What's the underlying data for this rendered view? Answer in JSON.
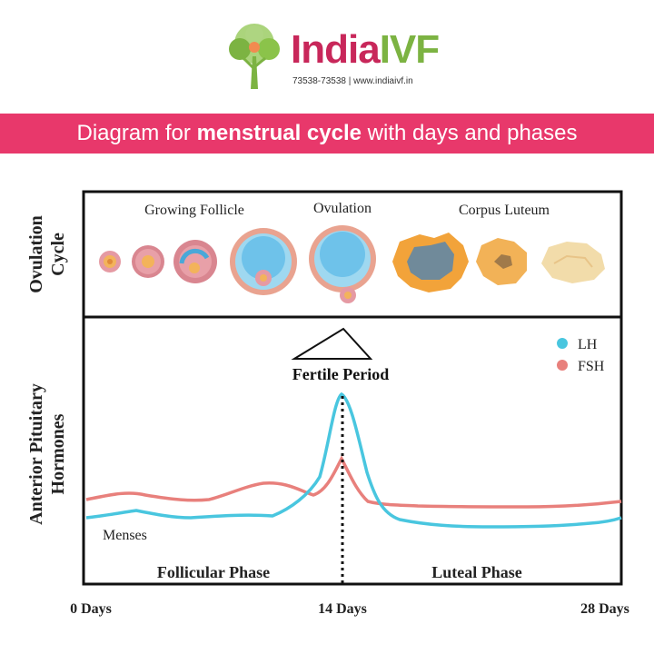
{
  "brand": {
    "name_part1": "India",
    "name_part2": "IVF",
    "tagline": "73538-73538 | www.indiaivf.in"
  },
  "banner": {
    "title_pre": "Diagram for ",
    "title_bold": "menstrual cycle",
    "title_post": " with days and phases"
  },
  "ovulation_panel": {
    "row_label_line1": "Ovulation",
    "row_label_line2": "Cycle",
    "stage_growing": "Growing Follicle",
    "stage_ovulation": "Ovulation",
    "stage_corpus": "Corpus Luteum"
  },
  "hormone_panel": {
    "row_label_line1": "Anterior Pituitary",
    "row_label_line2": "Hormones",
    "fertile_label": "Fertile Period",
    "menses_label": "Menses",
    "follicular_label": "Follicular Phase",
    "luteal_label": "Luteal Phase"
  },
  "legend": [
    {
      "name": "LH",
      "color": "#49c6df"
    },
    {
      "name": "FSH",
      "color": "#e8807c"
    }
  ],
  "axis": {
    "day0": "0 Days",
    "day14": "14 Days",
    "day28": "28 Days"
  },
  "colors": {
    "lh": "#49c6df",
    "fsh": "#e8807c",
    "banner": "#e8386b",
    "brand_pink": "#c8275a",
    "brand_green": "#7cb342"
  }
}
